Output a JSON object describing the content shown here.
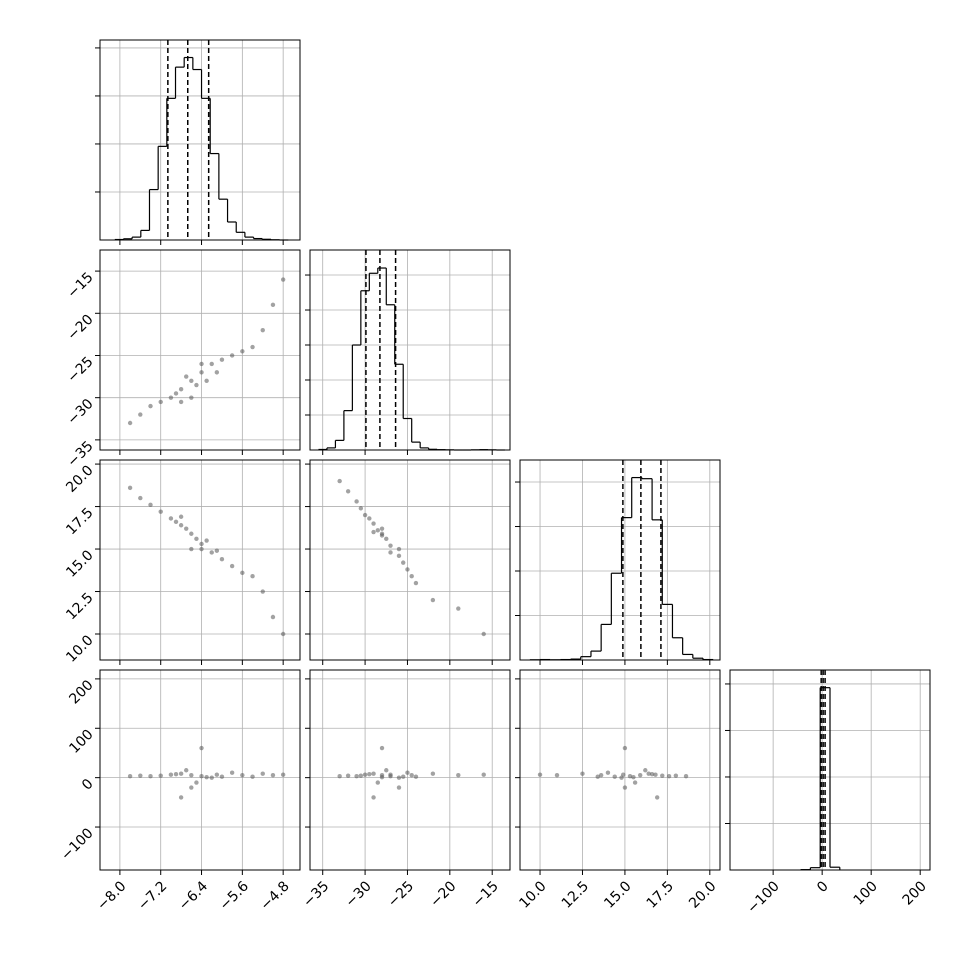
{
  "chart_data": [
    {
      "type": "hist",
      "bins": [
        -8.1,
        -7.93,
        -7.76,
        -7.59,
        -7.42,
        -7.25,
        -7.08,
        -6.91,
        -6.74,
        -6.57,
        -6.4,
        -6.23,
        -6.06,
        -5.89,
        -5.72,
        -5.55,
        -5.38,
        -5.21,
        -5.04,
        -4.87,
        -4.7
      ],
      "counts": [
        2,
        5,
        12,
        40,
        210,
        390,
        590,
        720,
        760,
        710,
        590,
        360,
        170,
        75,
        32,
        12,
        6,
        3,
        1,
        0
      ],
      "quantiles": [
        -7.06,
        -6.67,
        -6.26
      ],
      "color": "#000000",
      "xlim": [
        -8.39,
        -4.47
      ],
      "xticks": [
        -8,
        -7.2,
        -6.4,
        -5.6,
        -4.8
      ],
      "ylim": [
        0,
        833
      ],
      "yticks": [
        200,
        400,
        600,
        800
      ],
      "grid": true,
      "xtick_labels": false,
      "ytick_labels": false
    },
    {
      "type": "scatter",
      "color": "#555555",
      "x": [
        -6.6,
        -6.4,
        -6.8,
        -6.2,
        -7.0,
        -6.0,
        -7.2,
        -5.8,
        -6.5,
        -6.7,
        -6.3,
        -6.9,
        -5.6,
        -7.4,
        -6.1,
        -6.6,
        -7.6,
        -5.4,
        -5.0,
        -4.8,
        -6.4,
        -6.8,
        -7.8,
        -5.2
      ],
      "y": [
        -28,
        -27,
        -29,
        -26,
        -30,
        -25.5,
        -30.5,
        -25,
        -28.5,
        -27.5,
        -28,
        -29.5,
        -24.5,
        -31,
        -27,
        -30,
        -32,
        -24,
        -19,
        -16,
        -26,
        -30.5,
        -33,
        -22
      ],
      "xlim": [
        -8.39,
        -4.47
      ],
      "xticks": [
        -8,
        -7.2,
        -6.4,
        -5.6,
        -4.8
      ],
      "ylim": [
        -36.2,
        -12.5
      ],
      "yticks": [
        {
          "value": -35,
          "label": "−35"
        },
        {
          "value": -30,
          "label": "−30"
        },
        {
          "value": -25,
          "label": "−25"
        },
        {
          "value": -20,
          "label": "−20"
        },
        {
          "value": -15,
          "label": "−15"
        }
      ],
      "grid": true,
      "xtick_labels": false,
      "ytick_labels": true
    },
    {
      "type": "hist",
      "bins": [
        -35.5,
        -34.5,
        -33.5,
        -32.5,
        -31.5,
        -30.5,
        -29.5,
        -28.5,
        -27.5,
        -26.5,
        -25.5,
        -24.5,
        -23.5,
        -22.5,
        -21.5,
        -20.5,
        -19.5,
        -18.5,
        -17.5,
        -16.5,
        -15.5,
        -14.5,
        -13.5
      ],
      "counts": [
        3,
        12,
        55,
        225,
        600,
        910,
        1010,
        1040,
        830,
        490,
        180,
        45,
        12,
        4,
        2,
        1,
        0,
        0,
        1,
        2,
        1,
        0
      ],
      "quantiles": [
        -29.9,
        -28.25,
        -26.4
      ],
      "color": "#000000",
      "xlim": [
        -36.5,
        -12.9
      ],
      "xticks": [
        -35,
        -30,
        -25,
        -20,
        -15
      ],
      "ylim": [
        0,
        1143
      ],
      "yticks": [
        200,
        400,
        600,
        800,
        1000
      ],
      "grid": true,
      "xtick_labels": false,
      "ytick_labels": false
    },
    {
      "type": "scatter",
      "color": "#555555",
      "x": [
        -6.6,
        -6.4,
        -6.8,
        -6.2,
        -7.0,
        -6.0,
        -7.2,
        -5.8,
        -6.5,
        -6.7,
        -6.3,
        -6.9,
        -5.6,
        -7.4,
        -6.1,
        -6.6,
        -7.6,
        -5.4,
        -5.0,
        -4.8,
        -6.4,
        -6.8,
        -7.8,
        -5.2
      ],
      "y": [
        15.9,
        15.3,
        16.4,
        14.8,
        16.8,
        14.4,
        17.2,
        14.0,
        15.6,
        16.2,
        15.5,
        16.6,
        13.6,
        17.6,
        14.9,
        15.0,
        18.0,
        13.4,
        11.0,
        10.0,
        15.0,
        16.9,
        18.6,
        12.5
      ],
      "xlim": [
        -8.39,
        -4.47
      ],
      "xticks": [
        -8,
        -7.2,
        -6.4,
        -5.6,
        -4.8
      ],
      "ylim": [
        8.47,
        20.24
      ],
      "yticks": [
        {
          "value": 10,
          "label": "10.0"
        },
        12.5,
        {
          "value": 15,
          "label": "15.0"
        },
        17.5,
        {
          "value": 20,
          "label": "20.0"
        }
      ],
      "grid": true,
      "xtick_labels": false,
      "ytick_labels": true
    },
    {
      "type": "scatter",
      "color": "#555555",
      "x": [
        -28,
        -27,
        -29,
        -26,
        -30,
        -25.5,
        -30.5,
        -25,
        -28.5,
        -27.5,
        -28,
        -29.5,
        -24.5,
        -31,
        -27,
        -26,
        -32,
        -24,
        -19,
        -16,
        -28,
        -29,
        -33,
        -22
      ],
      "y": [
        15.9,
        15.2,
        16.5,
        14.6,
        17.0,
        14.2,
        17.4,
        13.8,
        16.1,
        15.6,
        15.8,
        16.8,
        13.4,
        17.8,
        14.8,
        15.0,
        18.4,
        13.0,
        11.5,
        10.0,
        16.2,
        16.0,
        19.0,
        12.0
      ],
      "xlim": [
        -36.5,
        -12.9
      ],
      "xticks": [
        -35,
        -30,
        -25,
        -20,
        -15
      ],
      "ylim": [
        8.47,
        20.24
      ],
      "yticks": [
        10,
        12.5,
        15,
        17.5,
        20
      ],
      "grid": true,
      "xtick_labels": false,
      "ytick_labels": false
    },
    {
      "type": "hist",
      "bins": [
        9.4,
        10.0,
        10.6,
        11.2,
        11.8,
        12.4,
        13.0,
        13.6,
        14.2,
        14.8,
        15.4,
        16.0,
        16.6,
        17.2,
        17.8,
        18.4,
        19.0,
        19.6,
        20.2
      ],
      "counts": [
        1,
        2,
        1,
        2,
        4,
        15,
        40,
        160,
        390,
        640,
        820,
        815,
        630,
        250,
        100,
        25,
        8,
        2
      ],
      "quantiles": [
        14.88,
        15.94,
        17.12
      ],
      "color": "#000000",
      "xlim": [
        8.82,
        20.6
      ],
      "xticks": [
        10,
        12.5,
        15,
        17.5,
        20
      ],
      "ylim": [
        0,
        899
      ],
      "yticks": [
        200,
        400,
        600,
        800
      ],
      "grid": true,
      "xtick_labels": false,
      "ytick_labels": false
    },
    {
      "type": "scatter",
      "color": "#555555",
      "x": [
        -6.6,
        -6.4,
        -6.8,
        -6.2,
        -7.0,
        -6.0,
        -7.2,
        -5.8,
        -6.5,
        -6.7,
        -6.3,
        -6.9,
        -5.6,
        -7.4,
        -6.1,
        -6.6,
        -7.6,
        -5.4,
        -5.0,
        -4.8,
        -6.4,
        -6.8,
        -7.8,
        -5.2
      ],
      "y": [
        5,
        3,
        8,
        0,
        6,
        2,
        4,
        10,
        -10,
        15,
        1,
        7,
        5,
        3,
        6,
        -20,
        4,
        2,
        5,
        6,
        60,
        -40,
        3,
        8
      ],
      "xlim": [
        -8.39,
        -4.47
      ],
      "xticks": [
        {
          "value": -8,
          "label": "−8.0"
        },
        {
          "value": -7.2,
          "label": "−7.2"
        },
        {
          "value": -6.4,
          "label": "−6.4"
        },
        {
          "value": -5.6,
          "label": "−5.6"
        },
        {
          "value": -4.8,
          "label": "−4.8"
        }
      ],
      "ylim": [
        -187,
        218
      ],
      "yticks": [
        {
          "value": -100,
          "label": "−100"
        },
        0,
        100,
        200
      ],
      "grid": true,
      "xtick_labels": true,
      "ytick_labels": true
    },
    {
      "type": "scatter",
      "color": "#555555",
      "x": [
        -28,
        -27,
        -29,
        -26,
        -30,
        -25.5,
        -30.5,
        -25,
        -28.5,
        -27.5,
        -28,
        -29.5,
        -24.5,
        -31,
        -27,
        -26,
        -32,
        -24,
        -19,
        -16,
        -28,
        -29,
        -33,
        -22
      ],
      "y": [
        5,
        3,
        8,
        0,
        6,
        2,
        4,
        10,
        -10,
        15,
        1,
        7,
        5,
        3,
        6,
        -20,
        4,
        2,
        5,
        6,
        60,
        -40,
        3,
        8
      ],
      "xlim": [
        -36.5,
        -12.9
      ],
      "xticks": [
        {
          "value": -35,
          "label": "−35"
        },
        {
          "value": -30,
          "label": "−30"
        },
        {
          "value": -25,
          "label": "−25"
        },
        {
          "value": -20,
          "label": "−20"
        },
        {
          "value": -15,
          "label": "−15"
        }
      ],
      "ylim": [
        -187,
        218
      ],
      "yticks": [
        -100,
        0,
        100,
        200
      ],
      "grid": true,
      "xtick_labels": true,
      "ytick_labels": false
    },
    {
      "type": "scatter",
      "color": "#555555",
      "x": [
        15.9,
        15.3,
        16.4,
        14.8,
        16.8,
        14.4,
        17.2,
        14.0,
        15.6,
        16.2,
        15.5,
        16.6,
        13.6,
        17.6,
        14.9,
        15.0,
        18.0,
        13.4,
        11.0,
        10.0,
        15.0,
        16.9,
        18.6,
        12.5
      ],
      "y": [
        5,
        3,
        8,
        0,
        6,
        2,
        4,
        10,
        -10,
        15,
        1,
        7,
        5,
        3,
        6,
        -20,
        4,
        2,
        5,
        6,
        60,
        -40,
        3,
        8
      ],
      "xlim": [
        8.82,
        20.6
      ],
      "xticks": [
        {
          "value": 10,
          "label": "10.0"
        },
        12.5,
        {
          "value": 15,
          "label": "15.0"
        },
        17.5,
        {
          "value": 20,
          "label": "20.0"
        }
      ],
      "ylim": [
        -187,
        218
      ],
      "yticks": [
        -100,
        0,
        100,
        200
      ],
      "grid": true,
      "xtick_labels": true,
      "ytick_labels": false
    },
    {
      "type": "hist",
      "bins": [
        -44,
        -24,
        -4,
        16,
        36
      ],
      "counts": [
        4,
        25,
        1960,
        30
      ],
      "quantiles": [
        -2,
        2,
        6
      ],
      "color": "#000000",
      "xlim": [
        -188,
        220
      ],
      "xticks": [
        {
          "value": -100,
          "label": "−100"
        },
        0,
        100,
        200
      ],
      "ylim": [
        0,
        2150
      ],
      "yticks": [
        500,
        1000,
        1500,
        2000
      ],
      "grid": true,
      "xtick_labels": true,
      "ytick_labels": false
    }
  ]
}
